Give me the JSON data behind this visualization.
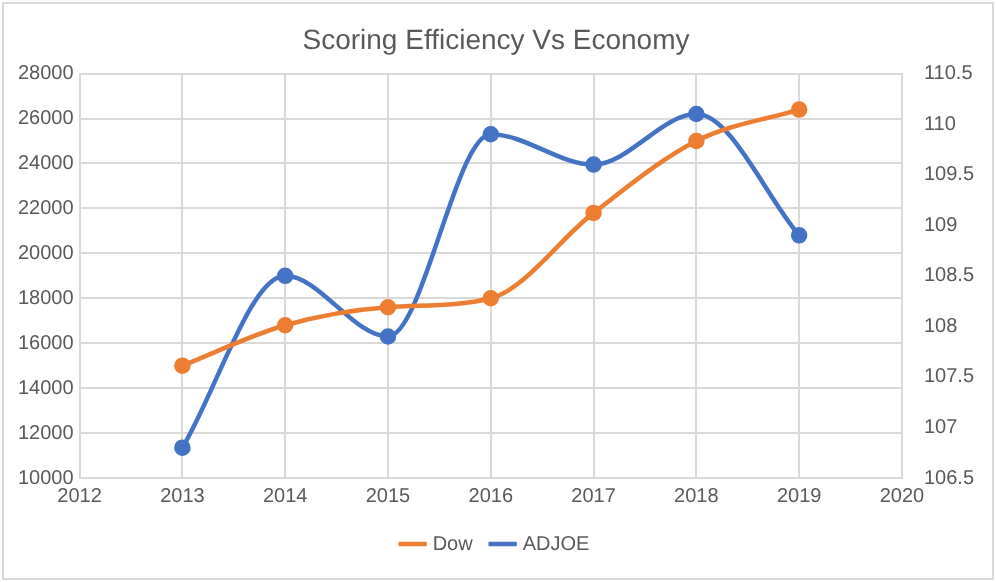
{
  "chart_data": {
    "type": "line",
    "title": "Scoring Efficiency Vs Economy",
    "x": [
      2013,
      2014,
      2015,
      2016,
      2017,
      2018,
      2019
    ],
    "series": [
      {
        "name": "Dow",
        "color": "#ed7d31",
        "values": [
          15000,
          16800,
          17600,
          18000,
          21800,
          25000,
          26400
        ]
      },
      {
        "name": "ADJOE",
        "color": "#4472c4",
        "axis": "y2",
        "values": [
          106.8,
          108.5,
          107.9,
          109.9,
          109.6,
          110.1,
          108.9
        ]
      }
    ],
    "xlim": [
      2012,
      2020
    ],
    "xticks": [
      2012,
      2013,
      2014,
      2015,
      2016,
      2017,
      2018,
      2019,
      2020
    ],
    "ylim": [
      10000,
      28000
    ],
    "yticks": [
      10000,
      12000,
      14000,
      16000,
      18000,
      20000,
      22000,
      24000,
      26000,
      28000
    ],
    "y2lim": [
      106.5,
      110.5
    ],
    "y2ticks": [
      106.5,
      107,
      107.5,
      108,
      108.5,
      109,
      109.5,
      110,
      110.5
    ],
    "grid": true,
    "legend": "bottom",
    "marker": "circle",
    "line_style": "solid"
  }
}
